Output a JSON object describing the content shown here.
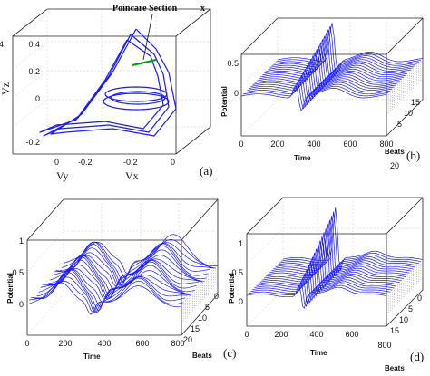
{
  "chart_data": [
    {
      "id": "a",
      "type": "line",
      "panel_label": "(a)",
      "projection": "3d",
      "xlabel": "Vx",
      "ylabel": "Vy",
      "zlabel": "Vz",
      "annotation": "Poincare Section",
      "x_ticks": [
        "0",
        "-0.2"
      ],
      "y_ticks": [
        "0",
        "-0.2"
      ],
      "z_ticks": [
        "0.4",
        "0.2",
        "0",
        "-0.2"
      ],
      "zlim": [
        -0.2,
        0.5
      ],
      "grid": true,
      "color": "#1a1aff",
      "section_color": "#00a000"
    },
    {
      "id": "b",
      "type": "line",
      "panel_label": "(b)",
      "projection": "3d-waterfall",
      "xlabel": "Time",
      "ylabel": "Beats",
      "zlabel": "Potential",
      "x_ticks": [
        "0",
        "200",
        "400",
        "600",
        "800"
      ],
      "y_ticks": [
        "5",
        "10",
        "15",
        "20"
      ],
      "z_ticks": [
        "0.5",
        "0"
      ],
      "xlim": [
        0,
        800
      ],
      "ylim": [
        0,
        20
      ],
      "zlim": [
        -0.3,
        0.7
      ],
      "beats": 20,
      "grid": true,
      "color": "#1a1aff"
    },
    {
      "id": "c",
      "type": "line",
      "panel_label": "(c)",
      "projection": "3d-waterfall",
      "xlabel": "Time",
      "ylabel": "Beats",
      "zlabel": "Potential",
      "x_ticks": [
        "0",
        "200",
        "400",
        "600",
        "800"
      ],
      "y_ticks": [
        "0",
        "5",
        "10",
        "15",
        "20"
      ],
      "z_ticks": [
        "1",
        "0.5",
        "0"
      ],
      "xlim": [
        0,
        800
      ],
      "ylim": [
        0,
        20
      ],
      "zlim": [
        -0.2,
        1
      ],
      "beats": 20,
      "grid": true,
      "color": "#1a1aff"
    },
    {
      "id": "d",
      "type": "line",
      "panel_label": "(d)",
      "projection": "3d-waterfall",
      "xlabel": "Time",
      "ylabel": "Beats",
      "zlabel": "Potential",
      "x_ticks": [
        "0",
        "200",
        "400",
        "600",
        "800"
      ],
      "y_ticks": [
        "0",
        "5",
        "10",
        "15"
      ],
      "z_ticks": [
        "1",
        "0.5",
        "0"
      ],
      "xlim": [
        0,
        800
      ],
      "ylim": [
        0,
        20
      ],
      "zlim": [
        -0.2,
        1
      ],
      "beats": 20,
      "grid": true,
      "color": "#1a1aff"
    }
  ]
}
